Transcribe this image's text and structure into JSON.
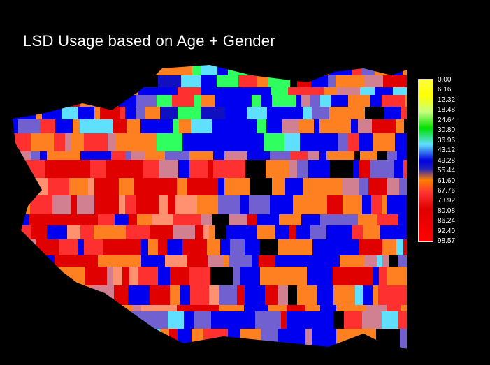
{
  "title": "LSD Usage based on Age + Gender",
  "legend": {
    "labels": [
      "0.00",
      "6.16",
      "12.32",
      "18.48",
      "24.64",
      "30.80",
      "36.96",
      "43.12",
      "49.28",
      "55.44",
      "61.60",
      "67.76",
      "73.92",
      "80.08",
      "86.24",
      "92.40",
      "98.57"
    ],
    "gradient": [
      [
        "#ffff40",
        0
      ],
      [
        "#ffff00",
        10
      ],
      [
        "#c8ff80",
        20
      ],
      [
        "#00e000",
        30
      ],
      [
        "#60e0ff",
        40
      ],
      [
        "#0000e0",
        50
      ],
      [
        "#2020c0",
        55
      ],
      [
        "#ff8000",
        62
      ],
      [
        "#ff3030",
        70
      ],
      [
        "#e00000",
        80
      ],
      [
        "#ff0000",
        100
      ]
    ]
  },
  "palette": {
    "orange": "#ff8020",
    "dark-orange": "#ff7000",
    "red": "#e00000",
    "light-red": "#ff3030",
    "salmon": "#ff9070",
    "blue": "#0000f0",
    "dark-blue": "#1010c0",
    "slate-blue": "#7060d0",
    "pink": "#d08090",
    "green": "#30ff60",
    "cyan": "#60e0ff",
    "black": "#000000"
  }
}
